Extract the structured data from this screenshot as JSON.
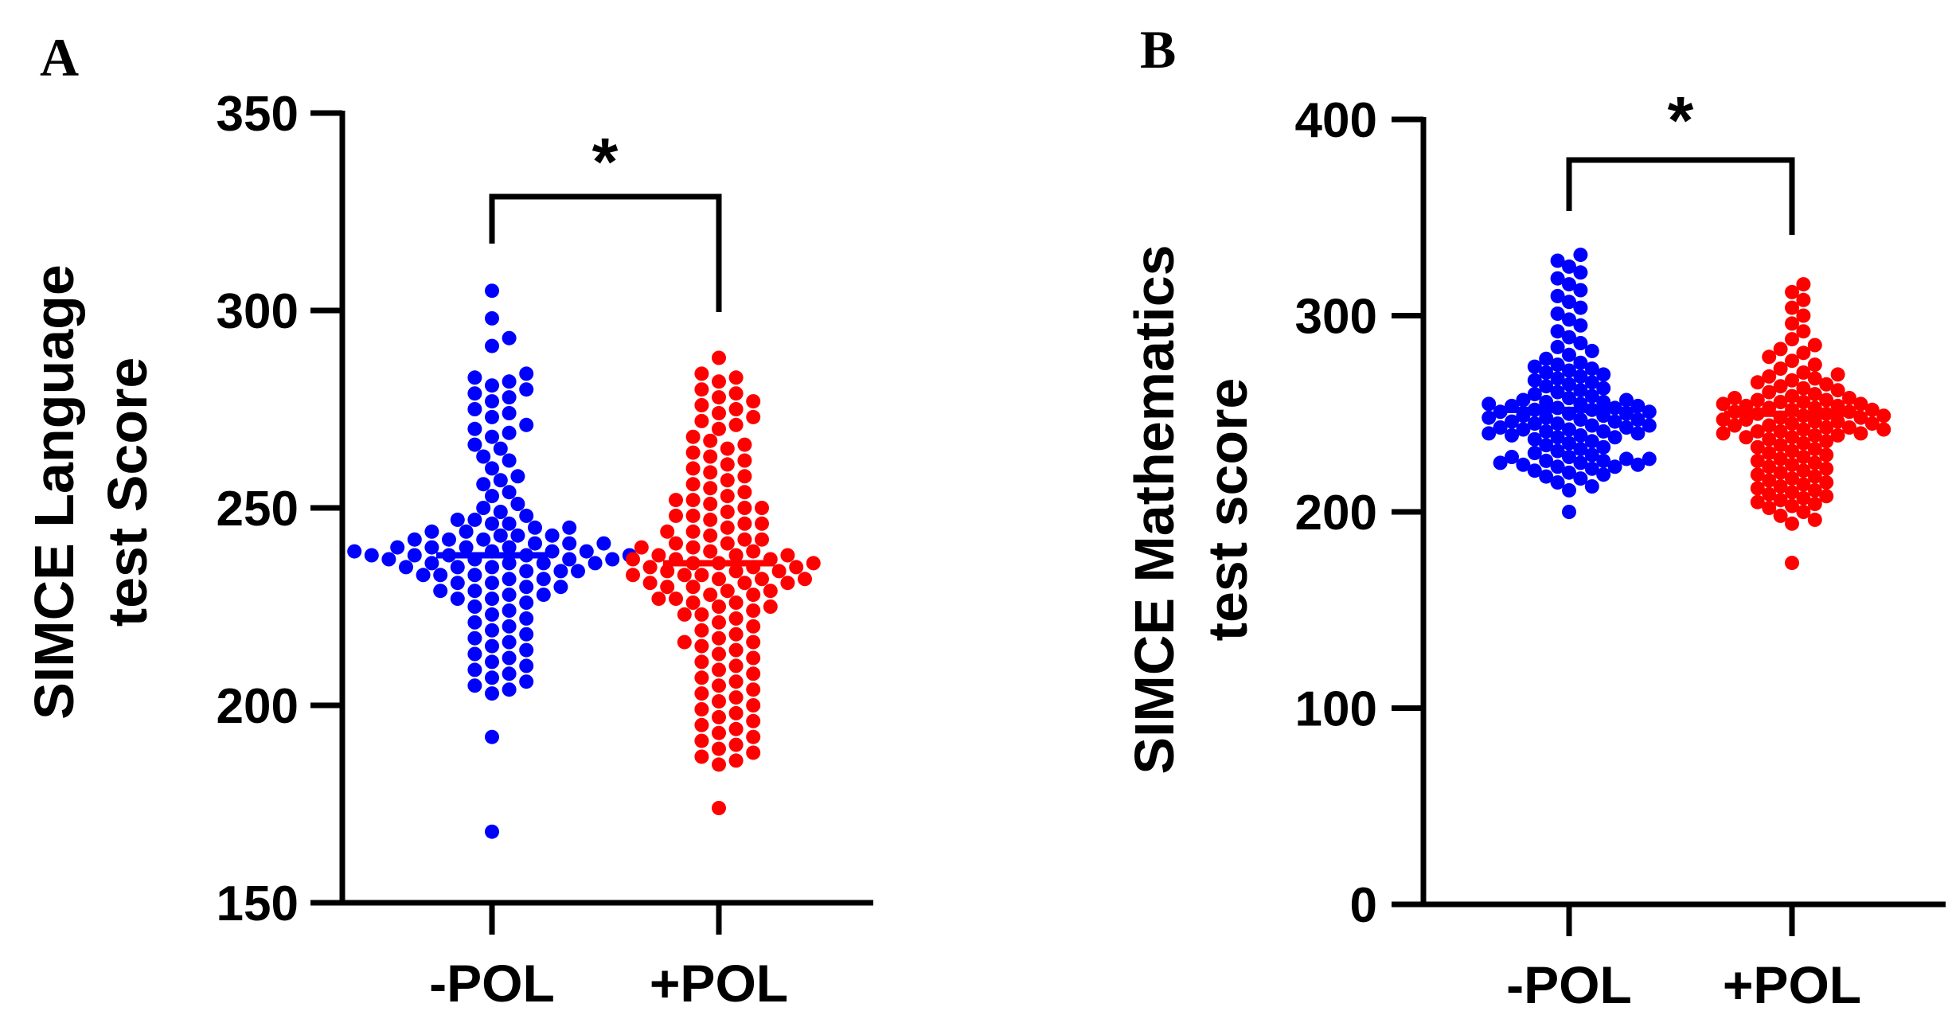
{
  "chart_data": [
    {
      "panel": "A",
      "type": "scatter",
      "subtype": "beeswarm",
      "ylabel_line1": "SIMCE Language",
      "ylabel_line2": "test Score",
      "ylim": [
        150,
        350
      ],
      "yticks": [
        150,
        200,
        250,
        300,
        350
      ],
      "categories": [
        "-POL",
        "+POL"
      ],
      "significance": "*",
      "series": [
        {
          "name": "-POL",
          "color": "#0000ff",
          "mean": 238,
          "values": [
            305,
            298,
            293,
            291,
            284,
            283,
            282,
            281,
            280,
            279,
            278,
            277,
            275,
            274,
            273,
            271,
            270,
            269,
            268,
            266,
            265,
            263,
            262,
            260,
            258,
            257,
            256,
            254,
            253,
            251,
            250,
            249,
            248,
            247,
            247,
            246,
            246,
            245,
            245,
            244,
            244,
            243,
            243,
            243,
            242,
            242,
            242,
            241,
            241,
            241,
            240,
            240,
            240,
            240,
            239,
            239,
            239,
            239,
            238,
            238,
            238,
            238,
            238,
            237,
            237,
            237,
            237,
            236,
            236,
            236,
            236,
            235,
            235,
            235,
            234,
            234,
            234,
            233,
            233,
            233,
            232,
            232,
            231,
            231,
            230,
            230,
            229,
            229,
            228,
            228,
            227,
            227,
            226,
            225,
            224,
            223,
            222,
            221,
            220,
            219,
            218,
            217,
            216,
            215,
            214,
            213,
            212,
            211,
            210,
            209,
            208,
            207,
            206,
            205,
            204,
            203,
            192,
            168
          ]
        },
        {
          "name": "+POL",
          "color": "#ff0000",
          "mean": 236,
          "values": [
            288,
            284,
            283,
            282,
            280,
            279,
            278,
            277,
            276,
            275,
            274,
            273,
            272,
            271,
            270,
            268,
            267,
            266,
            265,
            264,
            263,
            262,
            261,
            260,
            259,
            258,
            257,
            256,
            255,
            254,
            253,
            252,
            252,
            251,
            250,
            250,
            249,
            248,
            248,
            247,
            246,
            246,
            245,
            244,
            244,
            243,
            242,
            242,
            241,
            241,
            240,
            240,
            239,
            239,
            238,
            238,
            238,
            237,
            237,
            237,
            236,
            236,
            236,
            235,
            235,
            235,
            234,
            234,
            234,
            233,
            233,
            233,
            232,
            232,
            232,
            231,
            231,
            231,
            230,
            230,
            229,
            229,
            228,
            228,
            227,
            227,
            226,
            226,
            225,
            225,
            224,
            223,
            223,
            222,
            221,
            220,
            219,
            218,
            217,
            216,
            216,
            215,
            214,
            213,
            212,
            211,
            210,
            209,
            208,
            207,
            206,
            205,
            204,
            203,
            202,
            201,
            200,
            199,
            198,
            197,
            196,
            195,
            194,
            193,
            192,
            191,
            190,
            189,
            188,
            187,
            186,
            185,
            174
          ]
        }
      ]
    },
    {
      "panel": "B",
      "type": "scatter",
      "subtype": "beeswarm",
      "ylabel_line1": "SIMCE Mathematics",
      "ylabel_line2": "test score",
      "ylim": [
        0,
        400
      ],
      "yticks": [
        0,
        100,
        200,
        300,
        400
      ],
      "categories": [
        "-POL",
        "+POL"
      ],
      "significance": "*",
      "series": [
        {
          "name": "-POL",
          "color": "#0000ff",
          "mean": 252,
          "values": [
            331,
            328,
            325,
            322,
            319,
            316,
            313,
            310,
            307,
            304,
            301,
            298,
            295,
            292,
            289,
            286,
            284,
            282,
            280,
            278,
            276,
            275,
            274,
            273,
            272,
            271,
            270,
            269,
            268,
            267,
            266,
            265,
            264,
            263,
            262,
            261,
            260,
            259,
            258,
            257,
            257,
            256,
            256,
            255,
            255,
            254,
            254,
            253,
            253,
            252,
            252,
            251,
            251,
            250,
            250,
            249,
            249,
            248,
            248,
            247,
            247,
            246,
            246,
            245,
            245,
            244,
            244,
            243,
            243,
            242,
            242,
            241,
            241,
            240,
            240,
            239,
            239,
            238,
            238,
            237,
            236,
            235,
            234,
            233,
            232,
            231,
            230,
            229,
            228,
            228,
            227,
            227,
            226,
            226,
            225,
            225,
            224,
            224,
            223,
            223,
            222,
            221,
            220,
            219,
            218,
            217,
            215,
            213,
            211,
            200
          ]
        },
        {
          "name": "+POL",
          "color": "#ff0000",
          "mean": 250,
          "values": [
            316,
            312,
            308,
            304,
            300,
            296,
            292,
            288,
            285,
            283,
            281,
            279,
            277,
            275,
            273,
            271,
            270,
            269,
            268,
            267,
            266,
            265,
            264,
            263,
            262,
            261,
            260,
            259,
            258,
            258,
            257,
            257,
            256,
            256,
            255,
            255,
            254,
            254,
            253,
            253,
            252,
            252,
            251,
            251,
            250,
            250,
            249,
            249,
            248,
            248,
            247,
            247,
            246,
            246,
            245,
            245,
            244,
            244,
            243,
            243,
            242,
            242,
            241,
            241,
            240,
            240,
            239,
            239,
            238,
            238,
            237,
            236,
            235,
            234,
            233,
            232,
            231,
            230,
            229,
            228,
            227,
            226,
            225,
            224,
            223,
            222,
            221,
            220,
            219,
            218,
            217,
            216,
            215,
            214,
            213,
            212,
            211,
            210,
            209,
            208,
            207,
            206,
            205,
            204,
            203,
            202,
            200,
            198,
            196,
            194,
            174
          ]
        }
      ]
    }
  ]
}
